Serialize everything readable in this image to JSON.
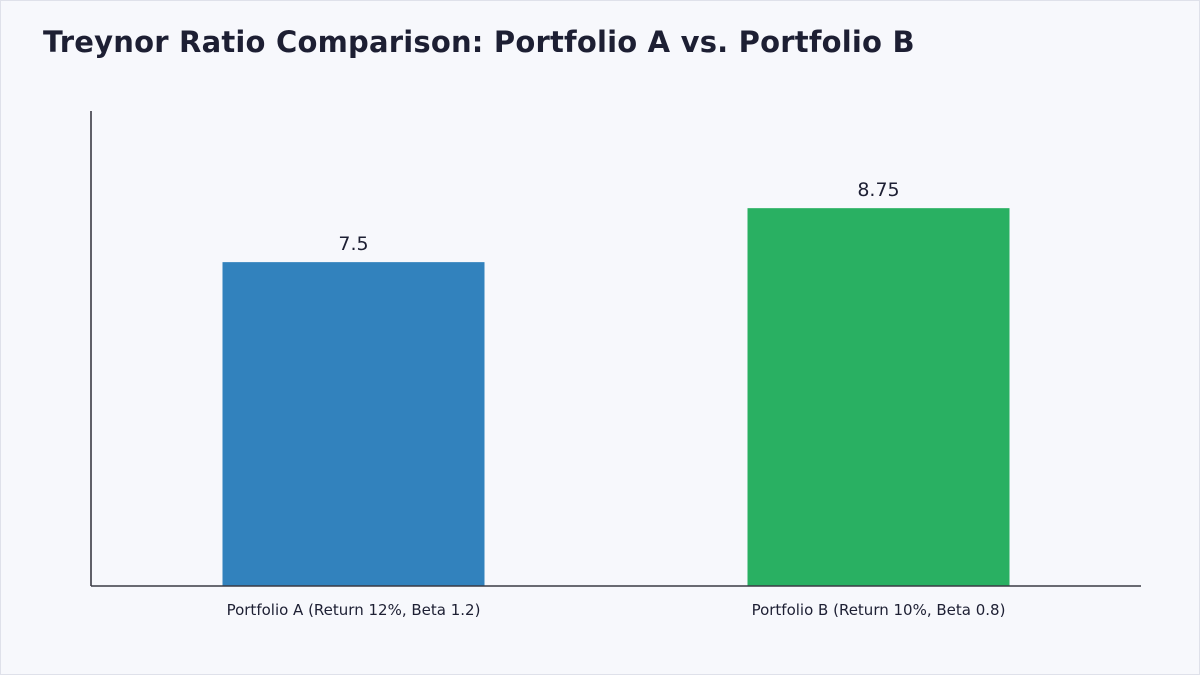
{
  "chart_data": {
    "type": "bar",
    "title": "Treynor Ratio Comparison: Portfolio A vs. Portfolio B",
    "categories": [
      "Portfolio A (Return 12%, Beta 1.2)",
      "Portfolio B (Return 10%, Beta 0.8)"
    ],
    "values": [
      7.5,
      8.75
    ],
    "value_labels": [
      "7.5",
      "8.75"
    ],
    "colors": [
      "#3282bd",
      "#29b062"
    ],
    "xlabel": "",
    "ylabel": "",
    "ylim": [
      0,
      11
    ],
    "grid": false
  }
}
